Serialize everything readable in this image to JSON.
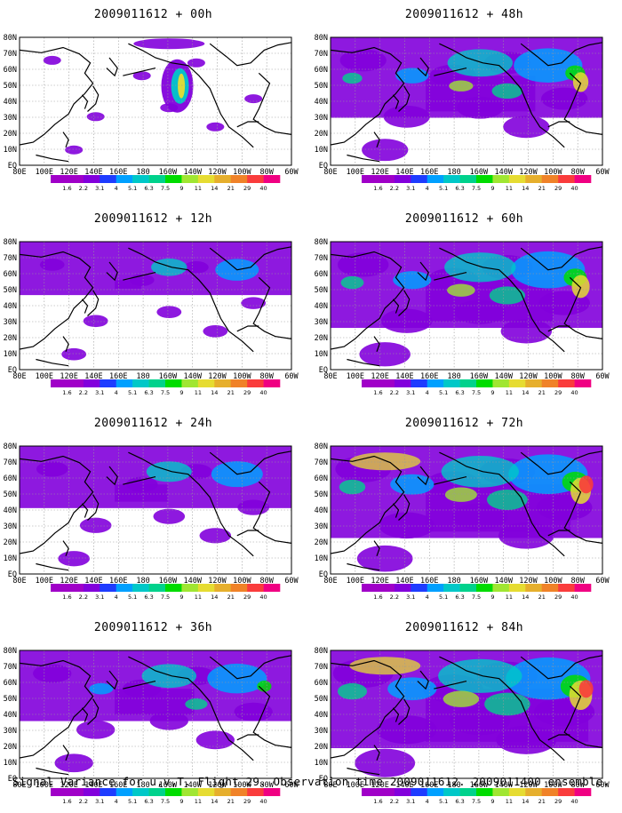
{
  "panels": [
    {
      "title": "2009011612 + 00h",
      "intensity": 0.0
    },
    {
      "title": "2009011612 + 48h",
      "intensity": 0.62
    },
    {
      "title": "2009011612 + 12h",
      "intensity": 0.15
    },
    {
      "title": "2009011612 + 60h",
      "intensity": 0.72
    },
    {
      "title": "2009011612 + 24h",
      "intensity": 0.3
    },
    {
      "title": "2009011612 + 72h",
      "intensity": 0.82
    },
    {
      "title": "2009011612 + 36h",
      "intensity": 0.45
    },
    {
      "title": "2009011612 + 84h",
      "intensity": 0.92
    }
  ],
  "lat_labels": [
    "80N",
    "70N",
    "60N",
    "50N",
    "40N",
    "30N",
    "20N",
    "10N",
    "EQ"
  ],
  "lon_labels": [
    "80E",
    "100E",
    "120E",
    "140E",
    "160E",
    "180",
    "160W",
    "140W",
    "120W",
    "100W",
    "80W",
    "60W"
  ],
  "colorbar": {
    "labels": [
      "1.6",
      "2.2",
      "3.1",
      "4",
      "5.1",
      "6.3",
      "7.5",
      "9",
      "11",
      "14",
      "21",
      "29",
      "40"
    ],
    "colors": [
      "#a000c8",
      "#8200dc",
      "#1e3cff",
      "#00a0ff",
      "#00c8c8",
      "#00d28c",
      "#00dc00",
      "#a0e632",
      "#e6dc32",
      "#e6af2d",
      "#f08228",
      "#fa3c3c",
      "#f00082"
    ]
  },
  "footer": "Signal Variance for u,v,T. Flight 29. Observation time 2009011612. 2009011400 ensemble."
}
